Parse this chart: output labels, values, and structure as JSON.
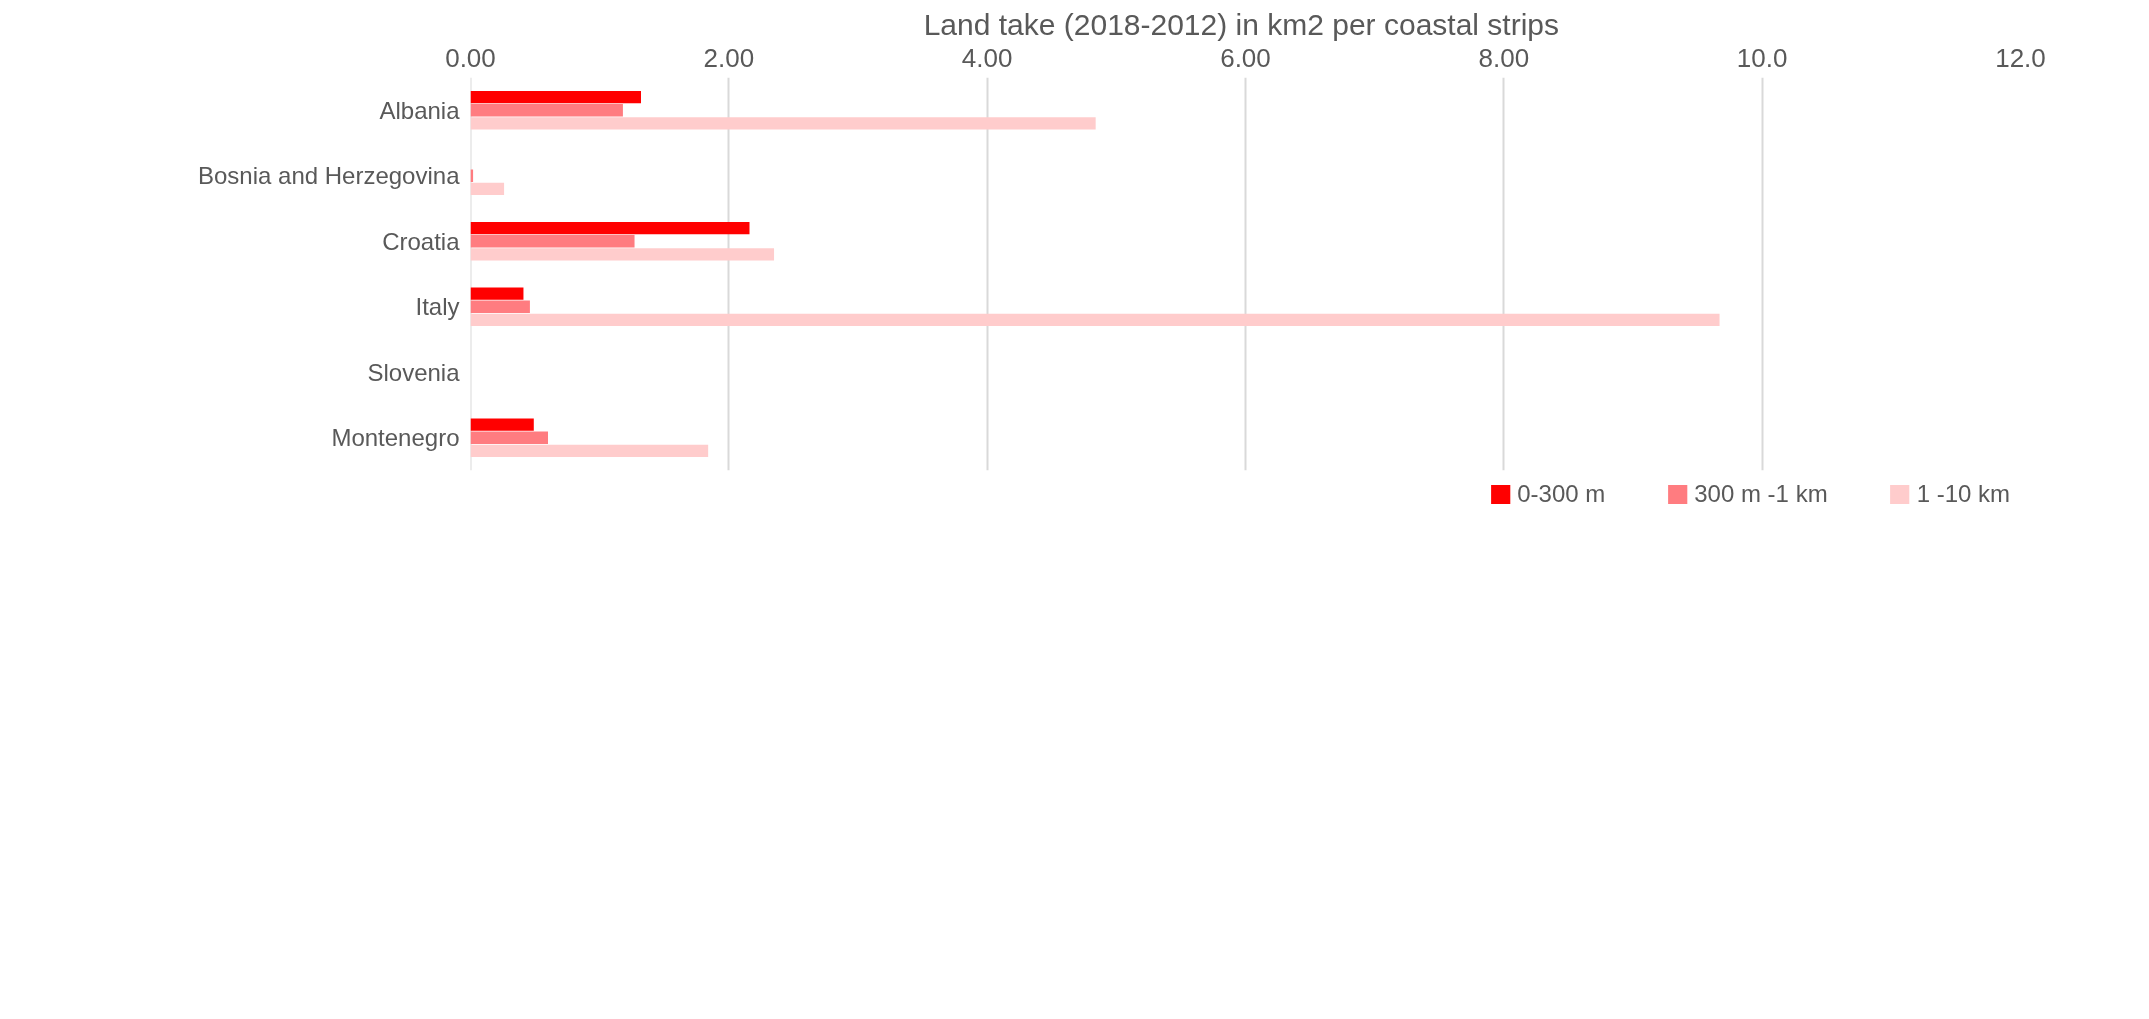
{
  "chart_data": {
    "type": "bar",
    "orientation": "horizontal",
    "title": "Land take (2018-2012) in km2  per coastal strips",
    "categories": [
      "Albania",
      "Bosnia and Herzegovina",
      "Croatia",
      "Italy",
      "Slovenia",
      "Montenegro"
    ],
    "series": [
      {
        "name": "0-300 m",
        "color": "#ff0000",
        "values": [
          1.32,
          null,
          2.16,
          0.41,
          null,
          0.49
        ]
      },
      {
        "name": "300 m -1 km",
        "color": "#ff7c80",
        "values": [
          1.18,
          0.02,
          1.27,
          0.46,
          null,
          0.6
        ]
      },
      {
        "name": "1 -10 km",
        "color": "#ffcccc",
        "values": [
          4.84,
          0.26,
          2.35,
          9.67,
          null,
          1.84
        ]
      }
    ],
    "xlim": [
      0,
      12
    ],
    "xticks": [
      {
        "value": 0,
        "label": "0.00"
      },
      {
        "value": 2,
        "label": "2.00"
      },
      {
        "value": 4,
        "label": "4.00"
      },
      {
        "value": 6,
        "label": "6.00"
      },
      {
        "value": 8,
        "label": "8.00"
      },
      {
        "value": 10,
        "label": "10.0"
      },
      {
        "value": 12,
        "label": "12.0"
      }
    ],
    "grid": "x",
    "legend": "bottom"
  }
}
